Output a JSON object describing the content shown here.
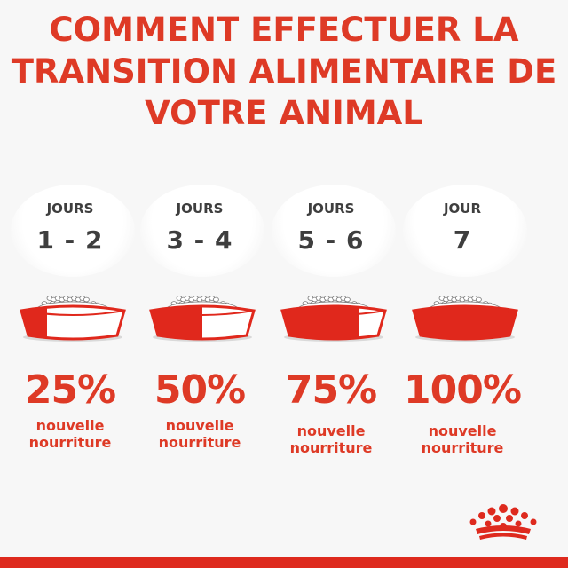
{
  "title_lines": [
    "COMMENT EFFECTUER LA",
    "TRANSITION ALIMENTAIRE DE",
    "VOTRE ANIMAL"
  ],
  "steps": [
    {
      "day_label": "JOURS",
      "day_range": "1 - 2",
      "percent": "25%",
      "desc_line1": "nouvelle",
      "desc_line2": "nourriture",
      "new_food_fraction": 0.25
    },
    {
      "day_label": "JOURS",
      "day_range": "3 - 4",
      "percent": "50%",
      "desc_line1": "nouvelle",
      "desc_line2": "nourriture",
      "new_food_fraction": 0.5
    },
    {
      "day_label": "JOURS",
      "day_range": "5 - 6",
      "percent": "75%",
      "desc_line1": "nouvelle",
      "desc_line2": "nourriture",
      "new_food_fraction": 0.75
    },
    {
      "day_label": "JOUR",
      "day_range": "7",
      "percent": "100%",
      "desc_line1": "nouvelle",
      "desc_line2": "nourriture",
      "new_food_fraction": 1.0
    }
  ],
  "colors": {
    "accent_red": "#de3a26",
    "bowl_red": "#e0281c",
    "bowl_white": "#ffffff",
    "dark_text": "#3e3e3e",
    "bar_red": "#de2a1e"
  },
  "icons": {
    "bowl": "food-bowl-icon",
    "brand": "crown-logo-icon"
  }
}
